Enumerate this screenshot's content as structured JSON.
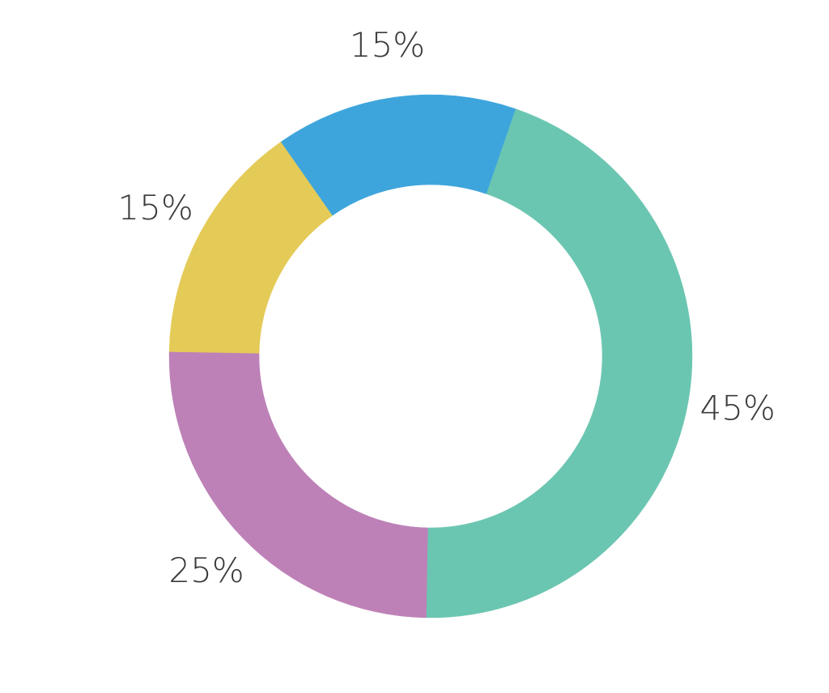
{
  "chart_data": {
    "type": "donut",
    "values": [
      15,
      45,
      25,
      15
    ],
    "value_labels": [
      "15%",
      "45%",
      "25%",
      "15%"
    ],
    "colors": [
      "#3ea5dc",
      "#6bc6b1",
      "#bd81b7",
      "#e4cb57"
    ]
  }
}
